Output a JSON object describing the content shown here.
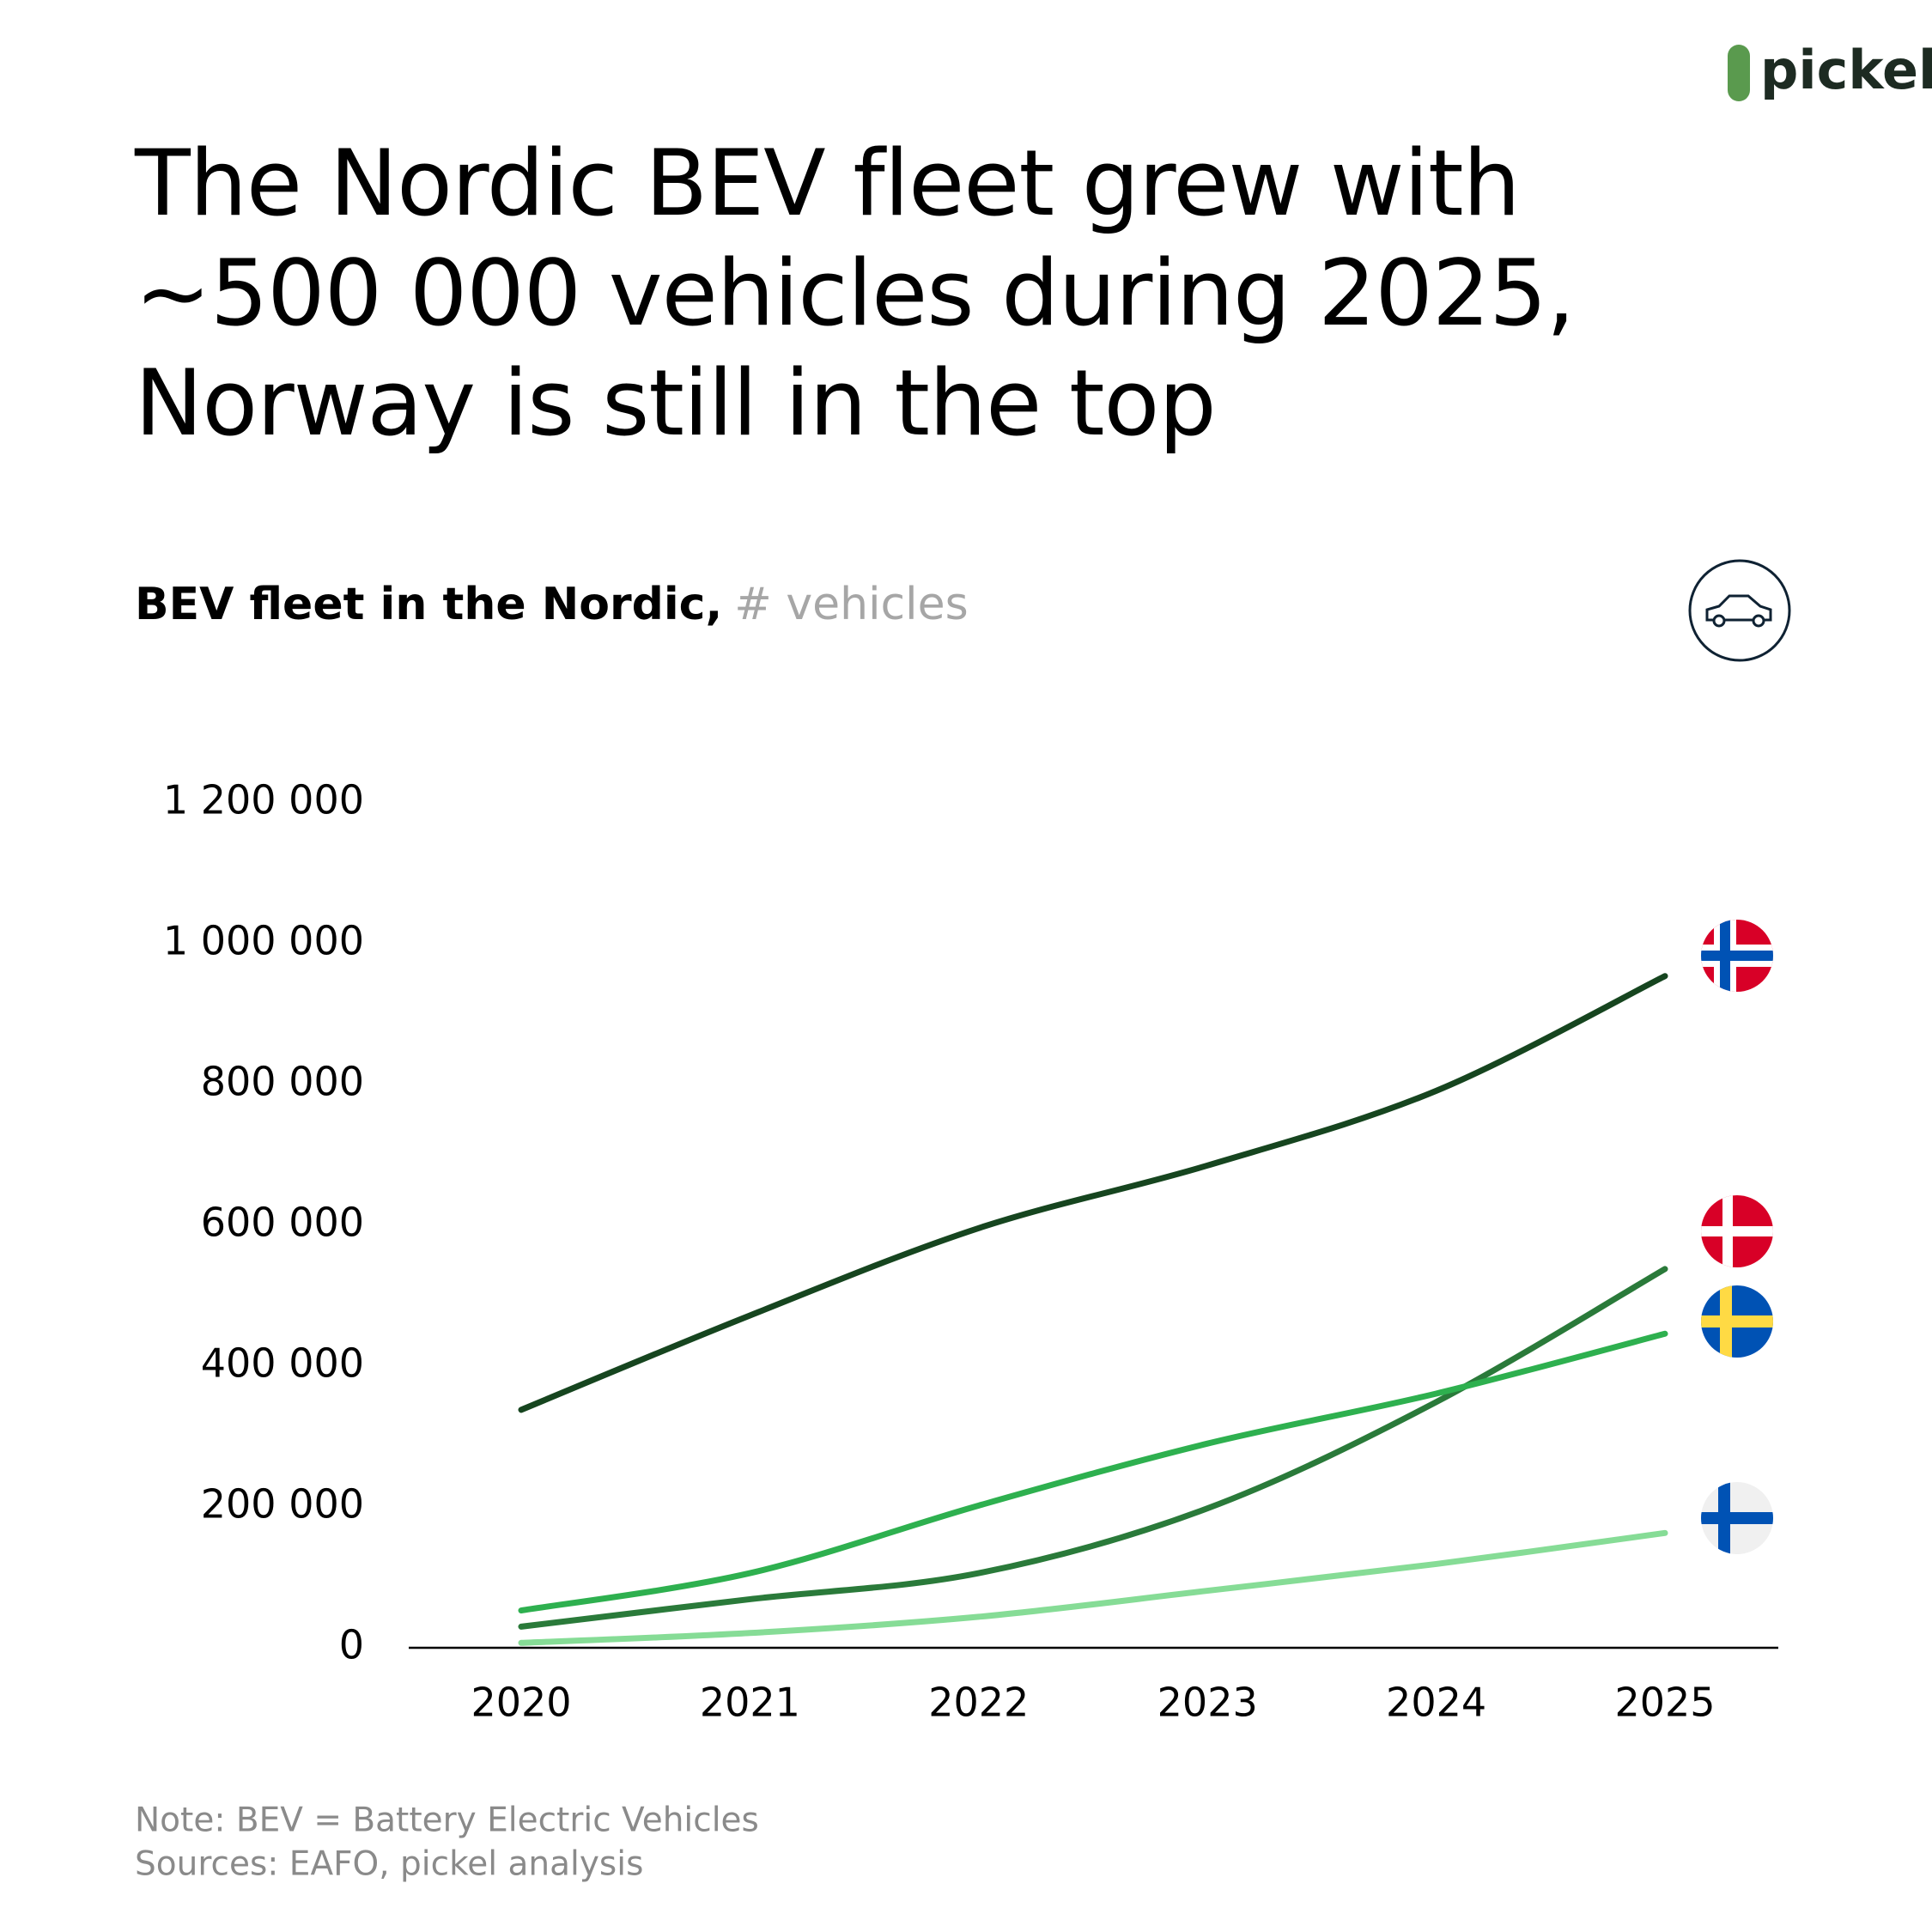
{
  "brand": "pickel",
  "chart_data": {
    "type": "line",
    "title": "The Nordic BEV fleet grew with ~500 000 vehicles during 2025, Norway is still in the top",
    "subtitle": "BEV fleet in the Nordic,",
    "unit": "# vehicles",
    "categories": [
      "2020",
      "2021",
      "2022",
      "2023",
      "2024",
      "2025"
    ],
    "series": [
      {
        "color": "#16451f",
        "values": [
          338000,
          472000,
          596000,
          685000,
          791000,
          954000
        ]
      },
      {
        "color": "#2a7a3a",
        "values": [
          30000,
          69000,
          106000,
          198000,
          349000,
          538000
        ]
      },
      {
        "color": "#2eb04f",
        "values": [
          53000,
          106000,
          202000,
          290000,
          361000,
          446000
        ]
      },
      {
        "color": "#86dc96",
        "values": [
          7000,
          21000,
          44000,
          81000,
          119000,
          163000
        ]
      }
    ],
    "ylim": [
      0,
      1200000
    ],
    "yticks": [
      0,
      {
        "value": 200000,
        "label": "200 000"
      },
      {
        "value": 400000,
        "label": "400 000"
      },
      {
        "value": 600000,
        "label": "600 000"
      },
      {
        "value": 800000,
        "label": "800 000"
      },
      {
        "value": 1000000,
        "label": "1 000 000"
      },
      {
        "value": 1200000,
        "label": "1 200 000"
      }
    ],
    "notes": [
      "Note: BEV = Battery Electric Vehicles",
      "Sources: EAFO, pickel analysis"
    ]
  }
}
